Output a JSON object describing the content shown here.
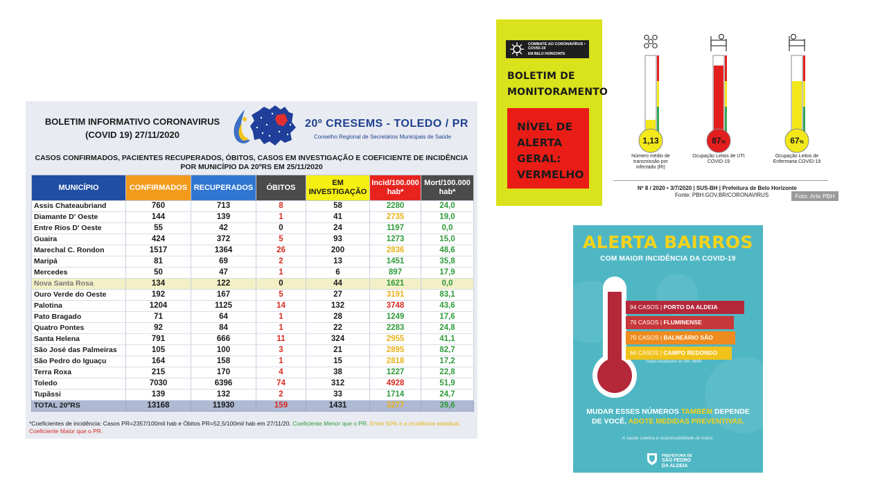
{
  "panel1": {
    "title_line1": "BOLETIM INFORMATIVO CORONAVIRUS",
    "title_line2": "(COVID 19)   27/11/2020",
    "org": "20º CRESEMS - TOLEDO / PR",
    "org_sub": "Conselho Regional de Secretários Municipais de Saúde",
    "subtitle_line1": "CASOS CONFIRMADOS, PACIENTES RECUPERADOS, ÓBITOS, CASOS EM  INVESTIGAÇÃO E COEFICIENTE DE INCIDÊNCIA",
    "subtitle_line2": "POR MUNICÍPIO DA 20ºRS EM 25/11/2020",
    "headers": {
      "municipio": "MUNICÍPIO",
      "confirmados": "CONFIRMADOS",
      "recuperados": "RECUPERADOS",
      "obitos": "ÓBITOS",
      "em": "EM",
      "investigacao": "INVESTIGAÇÃO",
      "incid1": "Incid/100.000",
      "incid2": "hab*",
      "mort1": "Mort/100.000",
      "mort2": "hab*"
    },
    "header_colors": {
      "municipio": "#1f4ea3",
      "confirmados": "#f39a1c",
      "recuperados": "#2f76d2",
      "obitos": "#4b4b4b",
      "investigacao": "#f6ef12",
      "incid": "#e8231e",
      "mort": "#4b4b4b"
    },
    "rows": [
      {
        "municipio": "Assis Chateaubriand",
        "confirmados": "760",
        "recuperados": "713",
        "obitos": "8",
        "investigacao": "58",
        "incid": "2280",
        "incid_color": "green",
        "mort": "24,0"
      },
      {
        "municipio": "Diamante D' Oeste",
        "confirmados": "144",
        "recuperados": "139",
        "obitos": "1",
        "investigacao": "41",
        "incid": "2735",
        "incid_color": "yellow",
        "mort": "19,0"
      },
      {
        "municipio": "Entre Rios D' Oeste",
        "confirmados": "55",
        "recuperados": "42",
        "obitos": "0",
        "investigacao": "24",
        "incid": "1197",
        "incid_color": "green",
        "mort": "0,0"
      },
      {
        "municipio": "Guaira",
        "confirmados": "424",
        "recuperados": "372",
        "obitos": "5",
        "investigacao": "93",
        "incid": "1273",
        "incid_color": "green",
        "mort": "15,0"
      },
      {
        "municipio": "Marechal C. Rondon",
        "confirmados": "1517",
        "recuperados": "1364",
        "obitos": "26",
        "investigacao": "200",
        "incid": "2836",
        "incid_color": "yellow",
        "mort": "48,6"
      },
      {
        "municipio": "Maripá",
        "confirmados": "81",
        "recuperados": "69",
        "obitos": "2",
        "investigacao": "13",
        "incid": "1451",
        "incid_color": "green",
        "mort": "35,8"
      },
      {
        "municipio": "Mercedes",
        "confirmados": "50",
        "recuperados": "47",
        "obitos": "1",
        "investigacao": "6",
        "incid": "897",
        "incid_color": "green",
        "mort": "17,9"
      },
      {
        "municipio": "Nova Santa Rosa",
        "confirmados": "134",
        "recuperados": "122",
        "obitos": "0",
        "investigacao": "44",
        "incid": "1621",
        "incid_color": "green",
        "mort": "0,0",
        "highlight": true
      },
      {
        "municipio": "Ouro Verde do Oeste",
        "confirmados": "192",
        "recuperados": "167",
        "obitos": "5",
        "investigacao": "27",
        "incid": "3191",
        "incid_color": "yellow",
        "mort": "83,1"
      },
      {
        "municipio": "Palotina",
        "confirmados": "1204",
        "recuperados": "1125",
        "obitos": "14",
        "investigacao": "132",
        "incid": "3748",
        "incid_color": "red",
        "mort": "43,6"
      },
      {
        "municipio": "Pato Bragado",
        "confirmados": "71",
        "recuperados": "64",
        "obitos": "1",
        "investigacao": "28",
        "incid": "1249",
        "incid_color": "green",
        "mort": "17,6"
      },
      {
        "municipio": "Quatro Pontes",
        "confirmados": "92",
        "recuperados": "84",
        "obitos": "1",
        "investigacao": "22",
        "incid": "2283",
        "incid_color": "green",
        "mort": "24,8"
      },
      {
        "municipio": "Santa Helena",
        "confirmados": "791",
        "recuperados": "666",
        "obitos": "11",
        "investigacao": "324",
        "incid": "2955",
        "incid_color": "yellow",
        "mort": "41,1"
      },
      {
        "municipio": "São José das Palmeiras",
        "confirmados": "105",
        "recuperados": "100",
        "obitos": "3",
        "investigacao": "21",
        "incid": "2895",
        "incid_color": "yellow",
        "mort": "82,7"
      },
      {
        "municipio": "São Pedro do Iguaçu",
        "confirmados": "164",
        "recuperados": "158",
        "obitos": "1",
        "investigacao": "15",
        "incid": "2818",
        "incid_color": "yellow",
        "mort": "17,2"
      },
      {
        "municipio": "Terra Roxa",
        "confirmados": "215",
        "recuperados": "170",
        "obitos": "4",
        "investigacao": "38",
        "incid": "1227",
        "incid_color": "green",
        "mort": "22,8"
      },
      {
        "municipio": "Toledo",
        "confirmados": "7030",
        "recuperados": "6396",
        "obitos": "74",
        "investigacao": "312",
        "incid": "4928",
        "incid_color": "red",
        "mort": "51,9"
      },
      {
        "municipio": "Tupãssi",
        "confirmados": "139",
        "recuperados": "132",
        "obitos": "2",
        "investigacao": "33",
        "incid": "1714",
        "incid_color": "green",
        "mort": "24,7"
      }
    ],
    "total": {
      "municipio": "TOTAL 20ºRS",
      "confirmados": "13168",
      "recuperados": "11930",
      "obitos": "159",
      "investigacao": "1431",
      "incid": "3277",
      "mort": "39,6"
    },
    "note_black": "*Coeficientes de incidência: Casos PR=2357/100mil hab e Óbitos PR=52,5/100mil hab em 27/11/20.",
    "note_green": "Coeficiente Menor que o PR.",
    "note_yellow": "Entre 50% e a incidência estadual.",
    "note_red": "Coeficiente Maior que o PR.",
    "colors": {
      "green": "#2e9b3a",
      "yellow": "#e7b21a",
      "red": "#d62a20",
      "obitos": "#d62a20",
      "mort": "#2e9b3a"
    }
  },
  "panel2": {
    "badge_line1": "COMBATE AO CORONAVÍRUS • COVID-19",
    "badge_line2": "EM BELO HORIZONTE",
    "title_line1": "BOLETIM DE",
    "title_line2": "MONITORAMENTO",
    "alert_line1": "NÍVEL DE",
    "alert_line2": "ALERTA",
    "alert_line3": "GERAL:",
    "alert_line4": "VERMELHO"
  },
  "thermometers": [
    {
      "value": "1,13",
      "suffix": "",
      "level": 0.17,
      "color": "#f2e81a",
      "caption1": "Número médio de",
      "caption2": "transmissão por",
      "caption3": "infectado  (Rt)"
    },
    {
      "value": "87",
      "suffix": "%",
      "level": 0.87,
      "color": "#e31e1e",
      "caption1": "Ocupação Leitos de UTI",
      "caption2": "COVID-19",
      "caption3": ""
    },
    {
      "value": "67",
      "suffix": "%",
      "level": 0.67,
      "color": "#f2e81a",
      "caption1": "Ocupação Leitos de",
      "caption2": "Enfermaria COVID-19",
      "caption3": ""
    }
  ],
  "therm_footer1": "Nº 8 / 2020 • 3/7/2020 | SUS-BH | Prefeitura de Belo Horizonte",
  "therm_footer2": "Fonte: PBH.GOV.BR/CORONAVIRUS",
  "photo_credit": "Foto: Arte PBH",
  "panel3": {
    "title": "ALERTA BAIRROS",
    "subtitle": "COM MAIOR INCIDÊNCIA DA COVID-19",
    "bars": [
      {
        "count": "94 CASOS",
        "name": "PORTO DA ALDEIA",
        "color": "#b5283a"
      },
      {
        "count": "76 CASOS",
        "name": "FLUMINENSE",
        "color": "#c8373a"
      },
      {
        "count": "70 CASOS",
        "name": "BALNEÁRIO SÃO PEDRO",
        "color": "#ee8b1f"
      },
      {
        "count": "66 CASOS",
        "name": "CAMPO REDONDO",
        "color": "#f2c21c"
      }
    ],
    "updated": "Dados atualizados às 15h, 08/09",
    "msg_a": "MUDAR ESSES NÚMEROS ",
    "msg_b": "TAMBÉM",
    "msg_c": " DEPENDE",
    "msg_d": "DE VOCÊ, ",
    "msg_e": "ADOTE MEDIDAS PREVENTIVAS.",
    "small": "A saúde coletiva é responsabilidade de todos.",
    "pref_line1": "PREFEITURA DE",
    "pref_line2": "SÃO PEDRO",
    "pref_line3": "DA ALDEIA"
  }
}
